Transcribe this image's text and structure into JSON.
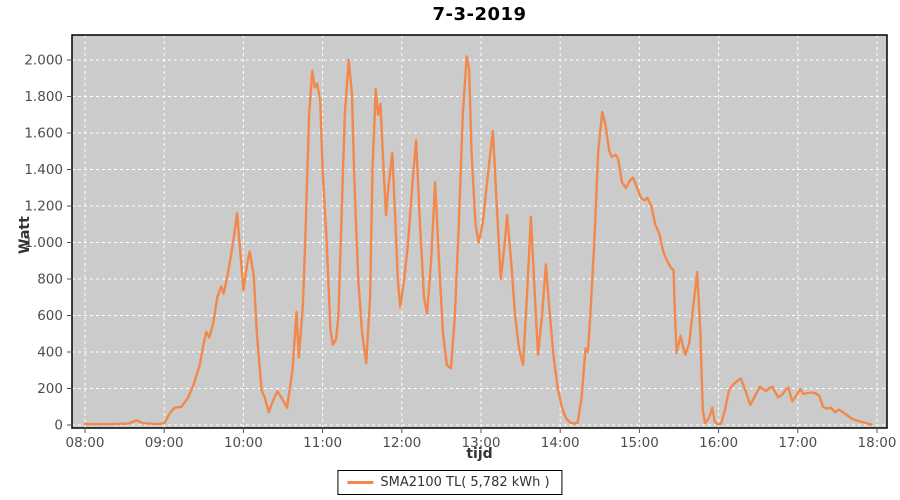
{
  "chart": {
    "title": "7-3-2019",
    "xlabel": "tijd",
    "ylabel": "Watt"
  },
  "legend": {
    "label": "SMA2100 TL( 5,782 kWh )"
  },
  "colors": {
    "series": "#f2884b",
    "plot_bg": "#cbcbcb",
    "grid": "#ffffff",
    "tick_text": "#4d4d4d",
    "plot_border": "#000000"
  },
  "chart_data": {
    "type": "line",
    "title": "7-3-2019",
    "xlabel": "tijd",
    "ylabel": "Watt",
    "legend_position": "bottom",
    "grid": "white dashed gridlines on gray plot background",
    "xlim": [
      7.84,
      18.13
    ],
    "ylim": [
      0,
      2140
    ],
    "x_ticks": [
      {
        "v": 8,
        "label": "08:00"
      },
      {
        "v": 9,
        "label": "09:00"
      },
      {
        "v": 10,
        "label": "10:00"
      },
      {
        "v": 11,
        "label": "11:00"
      },
      {
        "v": 12,
        "label": "12:00"
      },
      {
        "v": 13,
        "label": "13:00"
      },
      {
        "v": 14,
        "label": "14:00"
      },
      {
        "v": 15,
        "label": "15:00"
      },
      {
        "v": 16,
        "label": "16:00"
      },
      {
        "v": 17,
        "label": "17:00"
      },
      {
        "v": 18,
        "label": "18:00"
      }
    ],
    "y_ticks": [
      {
        "v": 0,
        "label": "0"
      },
      {
        "v": 200,
        "label": "200"
      },
      {
        "v": 400,
        "label": "400"
      },
      {
        "v": 600,
        "label": "600"
      },
      {
        "v": 800,
        "label": "800"
      },
      {
        "v": 1000,
        "label": "1.000"
      },
      {
        "v": 1200,
        "label": "1.200"
      },
      {
        "v": 1400,
        "label": "1.400"
      },
      {
        "v": 1600,
        "label": "1.600"
      },
      {
        "v": 1800,
        "label": "1.800"
      },
      {
        "v": 2000,
        "label": "2.000"
      }
    ],
    "series": [
      {
        "name": "SMA2100 TL( 5,782 kWh )",
        "color": "#f2884b",
        "points": [
          [
            8.0,
            5
          ],
          [
            8.33,
            5
          ],
          [
            8.55,
            8
          ],
          [
            8.65,
            25
          ],
          [
            8.73,
            10
          ],
          [
            8.92,
            5
          ],
          [
            9.0,
            10
          ],
          [
            9.08,
            70
          ],
          [
            9.13,
            95
          ],
          [
            9.22,
            100
          ],
          [
            9.3,
            150
          ],
          [
            9.37,
            220
          ],
          [
            9.45,
            330
          ],
          [
            9.5,
            450
          ],
          [
            9.53,
            510
          ],
          [
            9.57,
            480
          ],
          [
            9.62,
            560
          ],
          [
            9.67,
            700
          ],
          [
            9.72,
            760
          ],
          [
            9.75,
            720
          ],
          [
            9.8,
            820
          ],
          [
            9.87,
            1000
          ],
          [
            9.92,
            1160
          ],
          [
            9.97,
            900
          ],
          [
            10.0,
            740
          ],
          [
            10.05,
            890
          ],
          [
            10.08,
            950
          ],
          [
            10.13,
            820
          ],
          [
            10.17,
            500
          ],
          [
            10.23,
            190
          ],
          [
            10.27,
            150
          ],
          [
            10.32,
            70
          ],
          [
            10.38,
            140
          ],
          [
            10.43,
            185
          ],
          [
            10.48,
            150
          ],
          [
            10.55,
            95
          ],
          [
            10.62,
            300
          ],
          [
            10.67,
            620
          ],
          [
            10.7,
            370
          ],
          [
            10.75,
            650
          ],
          [
            10.78,
            1000
          ],
          [
            10.83,
            1700
          ],
          [
            10.87,
            1940
          ],
          [
            10.9,
            1850
          ],
          [
            10.93,
            1870
          ],
          [
            10.97,
            1780
          ],
          [
            11.0,
            1400
          ],
          [
            11.05,
            1010
          ],
          [
            11.1,
            520
          ],
          [
            11.13,
            440
          ],
          [
            11.17,
            470
          ],
          [
            11.2,
            600
          ],
          [
            11.23,
            1010
          ],
          [
            11.28,
            1700
          ],
          [
            11.33,
            2000
          ],
          [
            11.37,
            1820
          ],
          [
            11.4,
            1350
          ],
          [
            11.45,
            800
          ],
          [
            11.5,
            500
          ],
          [
            11.55,
            340
          ],
          [
            11.6,
            700
          ],
          [
            11.63,
            1400
          ],
          [
            11.67,
            1840
          ],
          [
            11.7,
            1700
          ],
          [
            11.73,
            1760
          ],
          [
            11.77,
            1400
          ],
          [
            11.8,
            1150
          ],
          [
            11.83,
            1300
          ],
          [
            11.88,
            1490
          ],
          [
            11.92,
            1100
          ],
          [
            11.95,
            800
          ],
          [
            11.98,
            645
          ],
          [
            12.03,
            800
          ],
          [
            12.08,
            1000
          ],
          [
            12.13,
            1300
          ],
          [
            12.18,
            1560
          ],
          [
            12.23,
            1100
          ],
          [
            12.28,
            700
          ],
          [
            12.32,
            610
          ],
          [
            12.37,
            900
          ],
          [
            12.42,
            1330
          ],
          [
            12.47,
            900
          ],
          [
            12.52,
            500
          ],
          [
            12.57,
            330
          ],
          [
            12.62,
            310
          ],
          [
            12.67,
            600
          ],
          [
            12.72,
            1100
          ],
          [
            12.77,
            1700
          ],
          [
            12.82,
            2020
          ],
          [
            12.85,
            1950
          ],
          [
            12.88,
            1500
          ],
          [
            12.93,
            1100
          ],
          [
            12.97,
            1000
          ],
          [
            13.02,
            1100
          ],
          [
            13.07,
            1300
          ],
          [
            13.12,
            1500
          ],
          [
            13.15,
            1610
          ],
          [
            13.2,
            1200
          ],
          [
            13.25,
            800
          ],
          [
            13.3,
            1000
          ],
          [
            13.33,
            1150
          ],
          [
            13.38,
            900
          ],
          [
            13.43,
            600
          ],
          [
            13.48,
            420
          ],
          [
            13.53,
            330
          ],
          [
            13.58,
            700
          ],
          [
            13.63,
            1140
          ],
          [
            13.68,
            700
          ],
          [
            13.72,
            385
          ],
          [
            13.77,
            600
          ],
          [
            13.82,
            880
          ],
          [
            13.87,
            600
          ],
          [
            13.92,
            360
          ],
          [
            13.97,
            200
          ],
          [
            14.02,
            100
          ],
          [
            14.07,
            40
          ],
          [
            14.12,
            15
          ],
          [
            14.17,
            8
          ],
          [
            14.22,
            10
          ],
          [
            14.27,
            150
          ],
          [
            14.32,
            420
          ],
          [
            14.35,
            400
          ],
          [
            14.38,
            600
          ],
          [
            14.43,
            1000
          ],
          [
            14.48,
            1500
          ],
          [
            14.53,
            1715
          ],
          [
            14.57,
            1650
          ],
          [
            14.62,
            1500
          ],
          [
            14.65,
            1470
          ],
          [
            14.7,
            1480
          ],
          [
            14.73,
            1460
          ],
          [
            14.78,
            1330
          ],
          [
            14.83,
            1300
          ],
          [
            14.88,
            1340
          ],
          [
            14.92,
            1355
          ],
          [
            14.97,
            1300
          ],
          [
            15.02,
            1245
          ],
          [
            15.07,
            1230
          ],
          [
            15.1,
            1245
          ],
          [
            15.15,
            1200
          ],
          [
            15.2,
            1100
          ],
          [
            15.25,
            1050
          ],
          [
            15.3,
            950
          ],
          [
            15.35,
            900
          ],
          [
            15.4,
            860
          ],
          [
            15.43,
            850
          ],
          [
            15.45,
            600
          ],
          [
            15.47,
            395
          ],
          [
            15.52,
            490
          ],
          [
            15.55,
            430
          ],
          [
            15.58,
            385
          ],
          [
            15.63,
            450
          ],
          [
            15.68,
            650
          ],
          [
            15.73,
            838
          ],
          [
            15.77,
            500
          ],
          [
            15.8,
            80
          ],
          [
            15.83,
            10
          ],
          [
            15.88,
            40
          ],
          [
            15.92,
            95
          ],
          [
            15.95,
            20
          ],
          [
            15.98,
            5
          ],
          [
            16.03,
            5
          ],
          [
            16.08,
            80
          ],
          [
            16.13,
            190
          ],
          [
            16.18,
            220
          ],
          [
            16.23,
            240
          ],
          [
            16.28,
            255
          ],
          [
            16.33,
            200
          ],
          [
            16.4,
            110
          ],
          [
            16.45,
            150
          ],
          [
            16.52,
            210
          ],
          [
            16.57,
            195
          ],
          [
            16.6,
            185
          ],
          [
            16.65,
            205
          ],
          [
            16.68,
            208
          ],
          [
            16.75,
            152
          ],
          [
            16.8,
            165
          ],
          [
            16.85,
            195
          ],
          [
            16.88,
            205
          ],
          [
            16.93,
            130
          ],
          [
            16.98,
            160
          ],
          [
            17.03,
            197
          ],
          [
            17.07,
            170
          ],
          [
            17.12,
            175
          ],
          [
            17.17,
            178
          ],
          [
            17.22,
            175
          ],
          [
            17.27,
            160
          ],
          [
            17.32,
            100
          ],
          [
            17.37,
            90
          ],
          [
            17.42,
            95
          ],
          [
            17.47,
            70
          ],
          [
            17.52,
            85
          ],
          [
            17.57,
            70
          ],
          [
            17.62,
            55
          ],
          [
            17.68,
            35
          ],
          [
            17.73,
            27
          ],
          [
            17.78,
            20
          ],
          [
            17.83,
            14
          ],
          [
            17.88,
            8
          ],
          [
            17.93,
            2
          ]
        ]
      }
    ]
  }
}
